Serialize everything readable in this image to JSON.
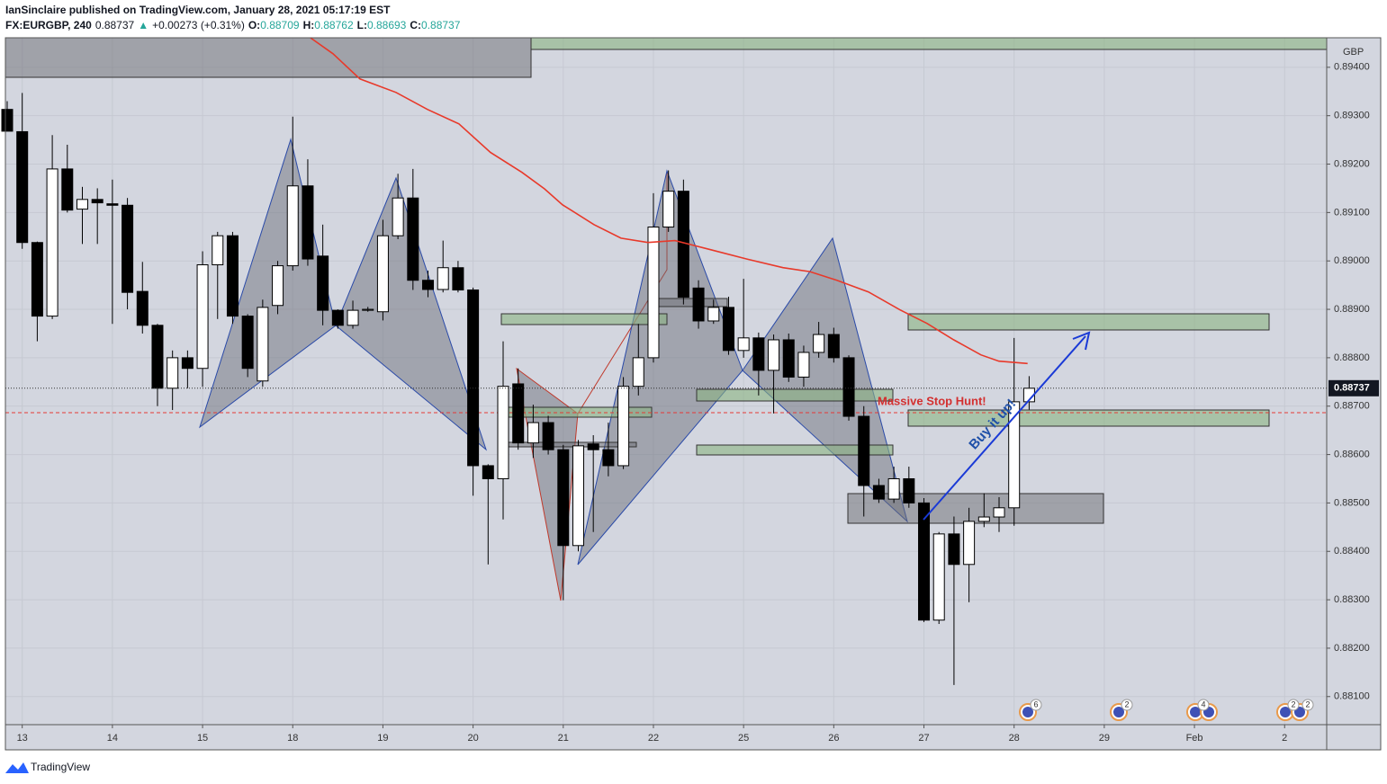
{
  "header": {
    "published": "IanSinclaire published on TradingView.com, January 28, 2021 05:17:19 EST",
    "symbol": "FX:EURGBP, 240",
    "last": "0.88737",
    "arrow": "▲",
    "change": "+0.00273 (+0.31%)",
    "ohlc": [
      {
        "k": "O:",
        "v": "0.88709"
      },
      {
        "k": "H:",
        "v": "0.88762"
      },
      {
        "k": "L:",
        "v": "0.88693"
      },
      {
        "k": "C:",
        "v": "0.88737"
      }
    ]
  },
  "footer": {
    "brand": "TradingView"
  },
  "chart_data": {
    "type": "candlestick",
    "currency": "GBP",
    "up_color": "#ffffff",
    "down_color": "#000000",
    "ma_color": "#e8392a",
    "grid": true,
    "xlim": [
      -0.12,
      87.8
    ],
    "xticks": [
      {
        "value": 1,
        "label": "13"
      },
      {
        "value": 7,
        "label": "14"
      },
      {
        "value": 13,
        "label": "15"
      },
      {
        "value": 19,
        "label": "18"
      },
      {
        "value": 25,
        "label": "19"
      },
      {
        "value": 31,
        "label": "20"
      },
      {
        "value": 37,
        "label": "21"
      },
      {
        "value": 43,
        "label": "22"
      },
      {
        "value": 49,
        "label": "25"
      },
      {
        "value": 55,
        "label": "26"
      },
      {
        "value": 61,
        "label": "27"
      },
      {
        "value": 67,
        "label": "28"
      },
      {
        "value": 73,
        "label": "29"
      },
      {
        "value": 79,
        "label": "Feb"
      },
      {
        "value": 85,
        "label": "2"
      }
    ],
    "ylim": [
      0.88042,
      0.89461
    ],
    "yticks": [
      {
        "value": 0.894,
        "label": "0.89400"
      },
      {
        "value": 0.893,
        "label": "0.89300"
      },
      {
        "value": 0.892,
        "label": "0.89200"
      },
      {
        "value": 0.891,
        "label": "0.89100"
      },
      {
        "value": 0.89,
        "label": "0.89000"
      },
      {
        "value": 0.889,
        "label": "0.88900"
      },
      {
        "value": 0.888,
        "label": "0.88800"
      },
      {
        "value": 0.887,
        "label": "0.88700"
      },
      {
        "value": 0.886,
        "label": "0.88600"
      },
      {
        "value": 0.885,
        "label": "0.88500"
      },
      {
        "value": 0.884,
        "label": "0.88400"
      },
      {
        "value": 0.883,
        "label": "0.88300"
      },
      {
        "value": 0.882,
        "label": "0.88200"
      },
      {
        "value": 0.881,
        "label": "0.88100"
      }
    ],
    "last_price": {
      "value": 0.88737,
      "label": "0.88737"
    },
    "candles": {
      "x": [
        0,
        1,
        2,
        3,
        4,
        5,
        6,
        7,
        8,
        9,
        10,
        11,
        12,
        13,
        14,
        15,
        16,
        17,
        18,
        19,
        20,
        21,
        22,
        23,
        24,
        25,
        26,
        27,
        28,
        29,
        30,
        31,
        32,
        33,
        34,
        35,
        36,
        37,
        38,
        39,
        40,
        41,
        42,
        43,
        44,
        45,
        46,
        47,
        48,
        49,
        50,
        51,
        52,
        53,
        54,
        55,
        56,
        57,
        58,
        59,
        60,
        61,
        62,
        63,
        64,
        65,
        66,
        67,
        68
      ],
      "open": [
        0.89313,
        0.89267,
        0.89038,
        0.88886,
        0.8919,
        0.89107,
        0.89127,
        0.89118,
        0.89115,
        0.88937,
        0.88867,
        0.88737,
        0.888,
        0.88778,
        0.88992,
        0.89052,
        0.88886,
        0.88752,
        0.88908,
        0.8899,
        0.89155,
        0.8901,
        0.88898,
        0.88867,
        0.88898,
        0.88895,
        0.89052,
        0.8913,
        0.8896,
        0.88941,
        0.88986,
        0.8894,
        0.88577,
        0.8855,
        0.88746,
        0.88624,
        0.88666,
        0.8861,
        0.88412,
        0.88622,
        0.8861,
        0.88577,
        0.88741,
        0.888,
        0.8907,
        0.89144,
        0.88944,
        0.88876,
        0.88904,
        0.88815,
        0.88841,
        0.88774,
        0.88837,
        0.8876,
        0.88811,
        0.88848,
        0.888,
        0.88679,
        0.88536,
        0.88508,
        0.8855,
        0.885,
        0.88258,
        0.88436,
        0.88373,
        0.88462,
        0.88471,
        0.8849,
        0.88709
      ],
      "high": [
        0.8933,
        0.89347,
        0.8904,
        0.8926,
        0.8924,
        0.89153,
        0.8915,
        0.89168,
        0.8913,
        0.88998,
        0.8887,
        0.88815,
        0.88815,
        0.8902,
        0.8906,
        0.8906,
        0.8889,
        0.8892,
        0.89,
        0.89298,
        0.8921,
        0.89075,
        0.889,
        0.88918,
        0.88905,
        0.89085,
        0.8918,
        0.8919,
        0.8898,
        0.89042,
        0.89,
        0.88945,
        0.8858,
        0.88834,
        0.88778,
        0.88703,
        0.8868,
        0.8862,
        0.8863,
        0.8864,
        0.88666,
        0.8876,
        0.8887,
        0.8914,
        0.89187,
        0.89168,
        0.8896,
        0.8892,
        0.88926,
        0.88963,
        0.88852,
        0.88848,
        0.8885,
        0.88825,
        0.88874,
        0.88862,
        0.88805,
        0.887,
        0.8855,
        0.88575,
        0.88575,
        0.8851,
        0.8844,
        0.88472,
        0.8849,
        0.8852,
        0.88512,
        0.88841,
        0.88762
      ],
      "low": [
        0.89268,
        0.89025,
        0.88834,
        0.8888,
        0.891,
        0.89035,
        0.89035,
        0.8887,
        0.889,
        0.8885,
        0.887,
        0.88692,
        0.88737,
        0.8874,
        0.8888,
        0.8887,
        0.8876,
        0.8874,
        0.8889,
        0.8898,
        0.8899,
        0.88867,
        0.8886,
        0.8886,
        0.88895,
        0.88877,
        0.89045,
        0.8894,
        0.88925,
        0.88935,
        0.88935,
        0.88515,
        0.88373,
        0.88466,
        0.8861,
        0.88593,
        0.886,
        0.88299,
        0.884,
        0.8844,
        0.88555,
        0.8857,
        0.88722,
        0.8879,
        0.8906,
        0.8891,
        0.8886,
        0.8887,
        0.88806,
        0.888,
        0.88722,
        0.88685,
        0.8875,
        0.8874,
        0.888,
        0.8879,
        0.8867,
        0.88472,
        0.885,
        0.885,
        0.8849,
        0.88254,
        0.8825,
        0.88124,
        0.88295,
        0.8845,
        0.8844,
        0.88453,
        0.88693
      ],
      "close": [
        0.89268,
        0.89038,
        0.88886,
        0.8919,
        0.89105,
        0.89127,
        0.8912,
        0.89115,
        0.88935,
        0.88867,
        0.88737,
        0.888,
        0.88778,
        0.88992,
        0.89052,
        0.88886,
        0.88778,
        0.88904,
        0.8899,
        0.89155,
        0.89004,
        0.88898,
        0.88867,
        0.88898,
        0.889,
        0.89052,
        0.8913,
        0.8896,
        0.88941,
        0.88986,
        0.8894,
        0.88577,
        0.8855,
        0.88741,
        0.88624,
        0.88666,
        0.8861,
        0.88412,
        0.88618,
        0.8861,
        0.88577,
        0.88741,
        0.888,
        0.8907,
        0.89144,
        0.88925,
        0.88876,
        0.88904,
        0.88815,
        0.88841,
        0.88774,
        0.88837,
        0.8876,
        0.88811,
        0.88848,
        0.888,
        0.88679,
        0.88536,
        0.88508,
        0.8855,
        0.885,
        0.88258,
        0.88436,
        0.88373,
        0.88462,
        0.88471,
        0.8849,
        0.88709,
        0.88737
      ]
    },
    "ma": {
      "x": [
        20.18,
        21.68,
        23.47,
        25.87,
        27.96,
        30.06,
        32.16,
        34.25,
        35.75,
        36.95,
        39.04,
        40.84,
        42.63,
        44.43,
        46.83,
        49.22,
        51.62,
        53.41,
        55.21,
        57.31,
        59.4,
        61.2,
        62.99,
        64.79,
        65.99,
        67.9
      ],
      "values": [
        0.89461,
        0.89428,
        0.89376,
        0.89348,
        0.89313,
        0.89283,
        0.89224,
        0.89183,
        0.89149,
        0.89116,
        0.89075,
        0.89047,
        0.89038,
        0.89042,
        0.89023,
        0.89004,
        0.88986,
        0.88978,
        0.8896,
        0.88936,
        0.88899,
        0.88871,
        0.88837,
        0.88806,
        0.88793,
        0.88788
      ]
    },
    "annotations": {
      "stop_hunt": "Massive Stop Hunt!",
      "buy": "Buy it up!"
    },
    "events": [
      "6",
      "2",
      "4",
      "2",
      "2"
    ]
  }
}
